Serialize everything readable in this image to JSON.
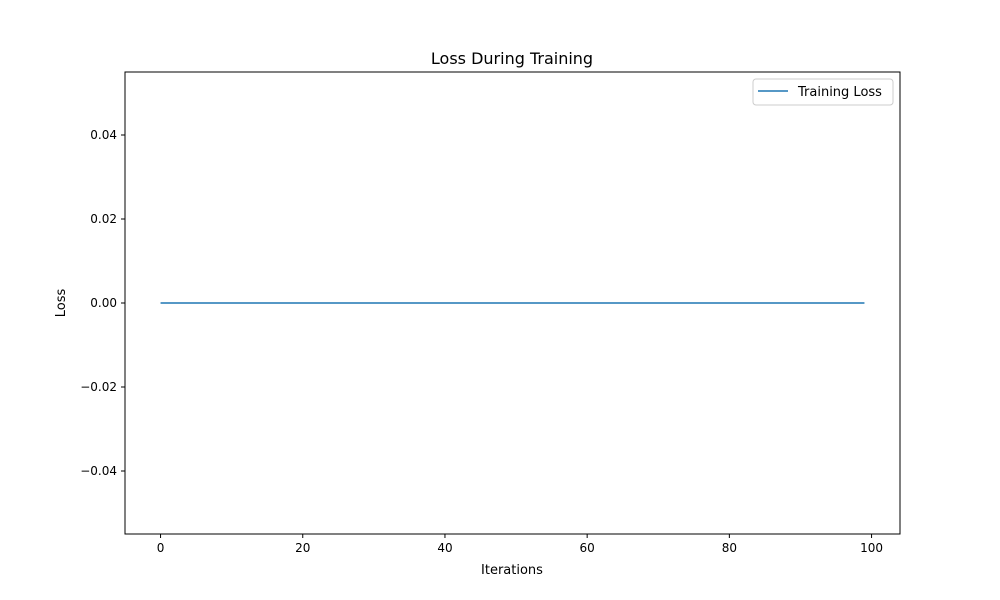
{
  "chart_data": {
    "type": "line",
    "title": "Loss During Training",
    "xlabel": "Iterations",
    "ylabel": "Loss",
    "xlim": [
      -5,
      104
    ],
    "ylim": [
      -0.055,
      0.055
    ],
    "x_ticks": [
      0,
      20,
      40,
      60,
      80,
      100
    ],
    "x_tick_labels": [
      "0",
      "20",
      "40",
      "60",
      "80",
      "100"
    ],
    "y_ticks": [
      -0.04,
      -0.02,
      0.0,
      0.02,
      0.04
    ],
    "y_tick_labels": [
      "−0.04",
      "−0.02",
      "0.00",
      "0.02",
      "0.04"
    ],
    "grid": false,
    "legend_position": "top-right",
    "series": [
      {
        "name": "Training Loss",
        "color": "#1f77b4",
        "x_start": 0,
        "x_end": 99,
        "x_step": 1,
        "y_constant": 0.0
      }
    ]
  }
}
